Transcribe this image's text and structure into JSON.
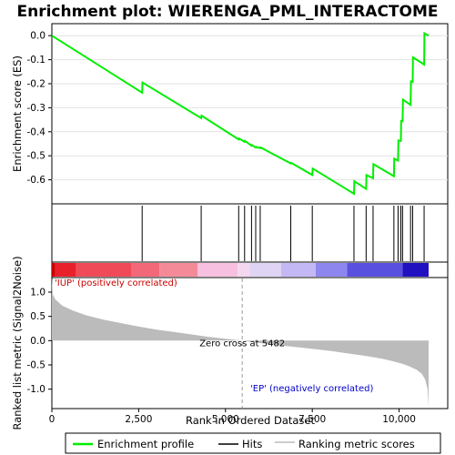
{
  "chart_data": {
    "type": "line",
    "title": "Enrichment plot: WIERENGA_PML_INTERACTOME",
    "xlabel": "Rank in Ordered Dataset",
    "ylabel_top": "Enrichment score (ES)",
    "ylabel_bottom": "Ranked list metric (Signal2Noise)",
    "xlim": [
      0,
      11400
    ],
    "xticks": [
      0,
      2500,
      5000,
      7500,
      10000
    ],
    "xtick_labels": [
      "0",
      "2,500",
      "5,000",
      "7,500",
      "10,000"
    ],
    "es_ylim": [
      -0.7,
      0.05
    ],
    "es_yticks": [
      0.0,
      -0.1,
      -0.2,
      -0.3,
      -0.4,
      -0.5,
      -0.6
    ],
    "es_ytick_labels": [
      "0.0",
      "-0.1",
      "-0.2",
      "-0.3",
      "-0.4",
      "-0.5",
      "-0.6"
    ],
    "metric_ylim": [
      -1.4,
      1.3
    ],
    "metric_yticks": [
      1.0,
      0.5,
      0.0,
      -0.5,
      -1.0
    ],
    "metric_ytick_labels": [
      "1.0",
      "0.5",
      "0.0",
      "-0.5",
      "-1.0"
    ],
    "enrichment_profile": [
      [
        0,
        0.0
      ],
      [
        2600,
        -0.237
      ],
      [
        2610,
        -0.195
      ],
      [
        4300,
        -0.343
      ],
      [
        4310,
        -0.333
      ],
      [
        5380,
        -0.432
      ],
      [
        5390,
        -0.428
      ],
      [
        5550,
        -0.442
      ],
      [
        5560,
        -0.438
      ],
      [
        5750,
        -0.458
      ],
      [
        5760,
        -0.455
      ],
      [
        5870,
        -0.466
      ],
      [
        5880,
        -0.463
      ],
      [
        6000,
        -0.468
      ],
      [
        6010,
        -0.465
      ],
      [
        6880,
        -0.532
      ],
      [
        6890,
        -0.529
      ],
      [
        7500,
        -0.58
      ],
      [
        7510,
        -0.553
      ],
      [
        8700,
        -0.658
      ],
      [
        8710,
        -0.606
      ],
      [
        9050,
        -0.638
      ],
      [
        9060,
        -0.58
      ],
      [
        9250,
        -0.593
      ],
      [
        9260,
        -0.535
      ],
      [
        9850,
        -0.585
      ],
      [
        9860,
        -0.512
      ],
      [
        9970,
        -0.52
      ],
      [
        9980,
        -0.436
      ],
      [
        10050,
        -0.438
      ],
      [
        10060,
        -0.355
      ],
      [
        10100,
        -0.356
      ],
      [
        10110,
        -0.266
      ],
      [
        10330,
        -0.288
      ],
      [
        10340,
        -0.19
      ],
      [
        10390,
        -0.192
      ],
      [
        10400,
        -0.09
      ],
      [
        10720,
        -0.12
      ],
      [
        10730,
        0.01
      ],
      [
        10850,
        0.0
      ]
    ],
    "hits": [
      2600,
      4300,
      5380,
      5550,
      5750,
      5870,
      6000,
      6880,
      7500,
      8700,
      9050,
      9250,
      9850,
      9970,
      10050,
      10100,
      10330,
      10390,
      10720
    ],
    "metric_curve": [
      [
        0,
        1.3
      ],
      [
        30,
        0.95
      ],
      [
        100,
        0.85
      ],
      [
        300,
        0.72
      ],
      [
        600,
        0.62
      ],
      [
        1000,
        0.52
      ],
      [
        1500,
        0.43
      ],
      [
        2000,
        0.36
      ],
      [
        2500,
        0.29
      ],
      [
        3000,
        0.23
      ],
      [
        3500,
        0.18
      ],
      [
        4000,
        0.13
      ],
      [
        4500,
        0.08
      ],
      [
        5000,
        0.04
      ],
      [
        5482,
        0.0
      ],
      [
        6000,
        -0.05
      ],
      [
        6500,
        -0.09
      ],
      [
        7000,
        -0.13
      ],
      [
        7500,
        -0.17
      ],
      [
        8000,
        -0.21
      ],
      [
        8500,
        -0.26
      ],
      [
        9000,
        -0.31
      ],
      [
        9500,
        -0.37
      ],
      [
        9800,
        -0.42
      ],
      [
        10100,
        -0.48
      ],
      [
        10300,
        -0.53
      ],
      [
        10500,
        -0.6
      ],
      [
        10650,
        -0.68
      ],
      [
        10750,
        -0.8
      ],
      [
        10820,
        -1.0
      ],
      [
        10850,
        -1.38
      ]
    ],
    "zero_cross_rank": 5482,
    "zero_cross_label": "Zero cross at 5482",
    "pos_label": "'IUP' (positively correlated)",
    "neg_label": "'EP' (negatively correlated)",
    "heatmap_segments": [
      {
        "from": 0,
        "to": 100,
        "color": "#cc0000"
      },
      {
        "from": 100,
        "to": 700,
        "color": "#e8202a"
      },
      {
        "from": 700,
        "to": 2300,
        "color": "#f04a58"
      },
      {
        "from": 2300,
        "to": 3100,
        "color": "#f26878"
      },
      {
        "from": 3100,
        "to": 4200,
        "color": "#f48a98"
      },
      {
        "from": 4200,
        "to": 5350,
        "color": "#f8c0e0"
      },
      {
        "from": 5350,
        "to": 5700,
        "color": "#f4d8f0"
      },
      {
        "from": 5700,
        "to": 6600,
        "color": "#e0d4f4"
      },
      {
        "from": 6600,
        "to": 7600,
        "color": "#c4b8f4"
      },
      {
        "from": 7600,
        "to": 8500,
        "color": "#8c86ee"
      },
      {
        "from": 8500,
        "to": 10100,
        "color": "#5a50e0"
      },
      {
        "from": 10100,
        "to": 10850,
        "color": "#2010c0"
      }
    ],
    "legend": [
      {
        "label": "Enrichment profile",
        "color": "#00ee00",
        "kind": "line"
      },
      {
        "label": "Hits",
        "color": "#000000",
        "kind": "line"
      },
      {
        "label": "Ranking metric scores",
        "color": "#bbbbbb",
        "kind": "line"
      }
    ],
    "colors": {
      "profile": "#00ee00",
      "hits": "#000000",
      "metric": "#bbbbbb"
    }
  }
}
